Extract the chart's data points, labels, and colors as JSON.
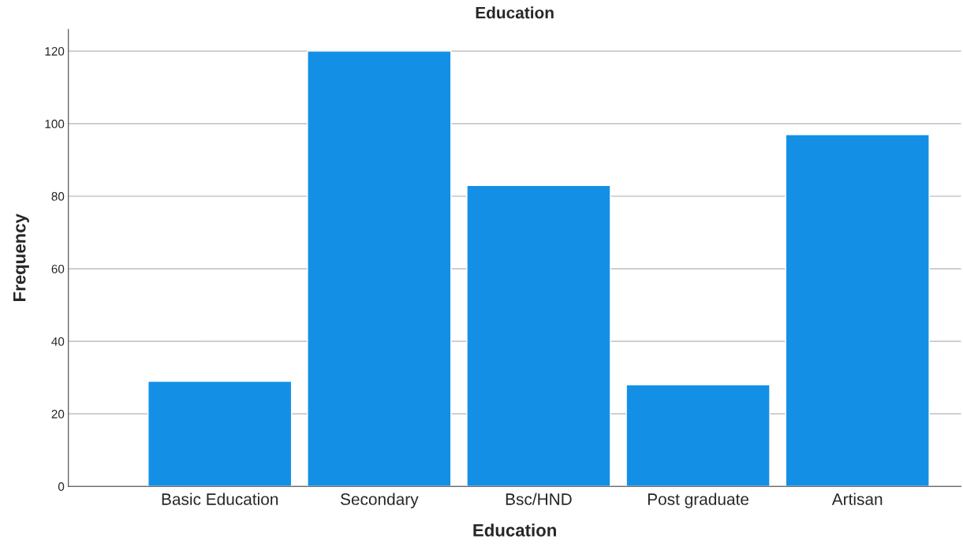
{
  "chart_data": {
    "type": "bar",
    "title": "Education",
    "xlabel": "Education",
    "ylabel": "Frequency",
    "categories": [
      "Basic Education",
      "Secondary",
      "Bsc/HND",
      "Post graduate",
      "Artisan"
    ],
    "values": [
      29,
      120,
      83,
      28,
      97
    ],
    "color": "#1390e6",
    "ylim": [
      0,
      126
    ],
    "yticks": [
      0,
      20,
      40,
      60,
      80,
      100,
      120
    ],
    "grid": "y",
    "legend": false
  }
}
